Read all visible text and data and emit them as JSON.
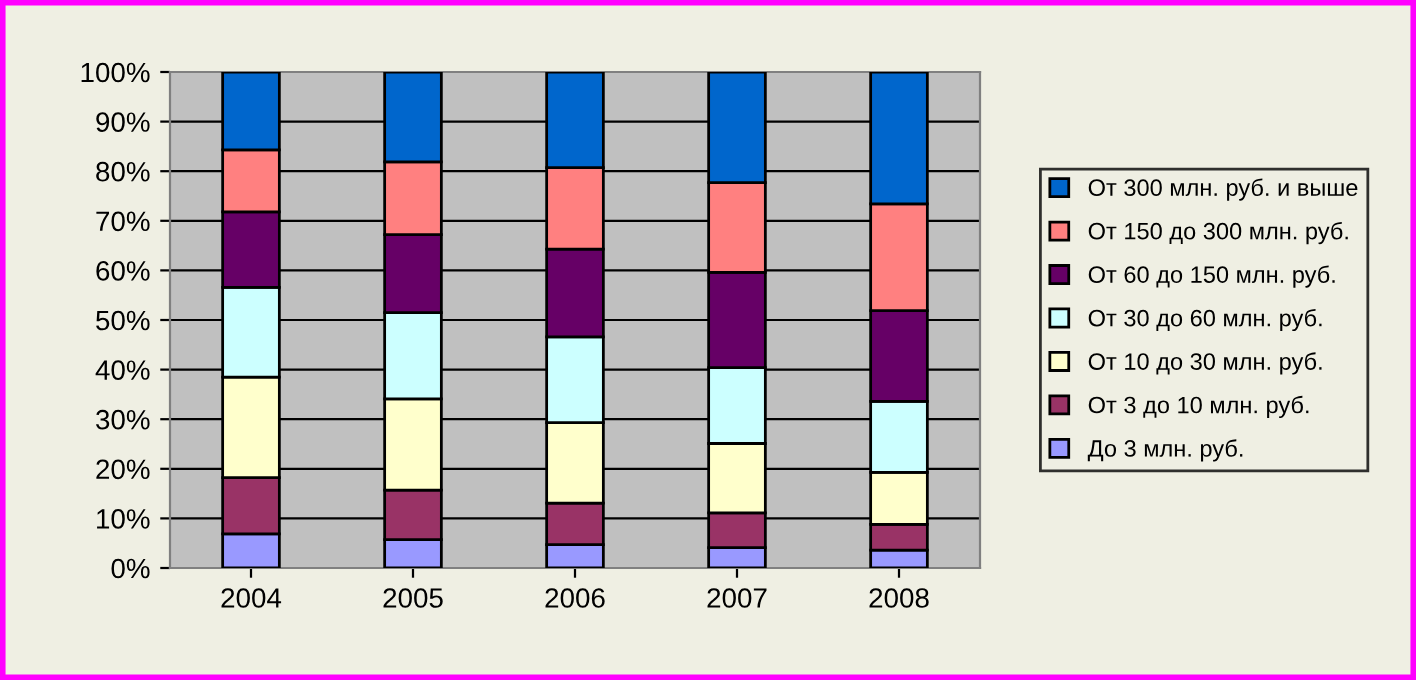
{
  "chart_data": {
    "type": "bar",
    "stacked": true,
    "categories": [
      "2004",
      "2005",
      "2006",
      "2007",
      "2008"
    ],
    "series": [
      {
        "name": "До 3 млн. руб.",
        "color": "#9999ff",
        "values": [
          6.9,
          5.7,
          4.7,
          4.1,
          3.6
        ]
      },
      {
        "name": "От 3 до 10 млн. руб.",
        "color": "#993366",
        "values": [
          11.3,
          10.0,
          8.4,
          7.0,
          5.2
        ]
      },
      {
        "name": "От 10 до 30 млн. руб.",
        "color": "#ffffcc",
        "values": [
          20.3,
          18.4,
          16.2,
          14.0,
          10.5
        ]
      },
      {
        "name": "От 30 до 60 млн. руб.",
        "color": "#ccffff",
        "values": [
          18.1,
          17.4,
          17.3,
          15.3,
          14.3
        ]
      },
      {
        "name": "От 60 до 150 млн. руб.",
        "color": "#660066",
        "values": [
          15.2,
          15.7,
          17.7,
          19.2,
          18.3
        ]
      },
      {
        "name": "От 150 до 300 млн. руб.",
        "color": "#ff8080",
        "values": [
          12.5,
          14.7,
          16.4,
          18.1,
          21.5
        ]
      },
      {
        "name": "От 300 млн. руб. и выше",
        "color": "#0066cc",
        "values": [
          15.7,
          18.1,
          19.3,
          22.3,
          26.6
        ]
      }
    ],
    "ylim": [
      0,
      100
    ],
    "yticks": [
      {
        "value": 0,
        "label": "0%"
      },
      {
        "value": 10,
        "label": "10%"
      },
      {
        "value": 20,
        "label": "20%"
      },
      {
        "value": 30,
        "label": "30%"
      },
      {
        "value": 40,
        "label": "40%"
      },
      {
        "value": 50,
        "label": "50%"
      },
      {
        "value": 60,
        "label": "60%"
      },
      {
        "value": 70,
        "label": "70%"
      },
      {
        "value": 80,
        "label": "80%"
      },
      {
        "value": 90,
        "label": "90%"
      },
      {
        "value": 100,
        "label": "100%"
      }
    ],
    "grid": "y",
    "legend": "right"
  }
}
